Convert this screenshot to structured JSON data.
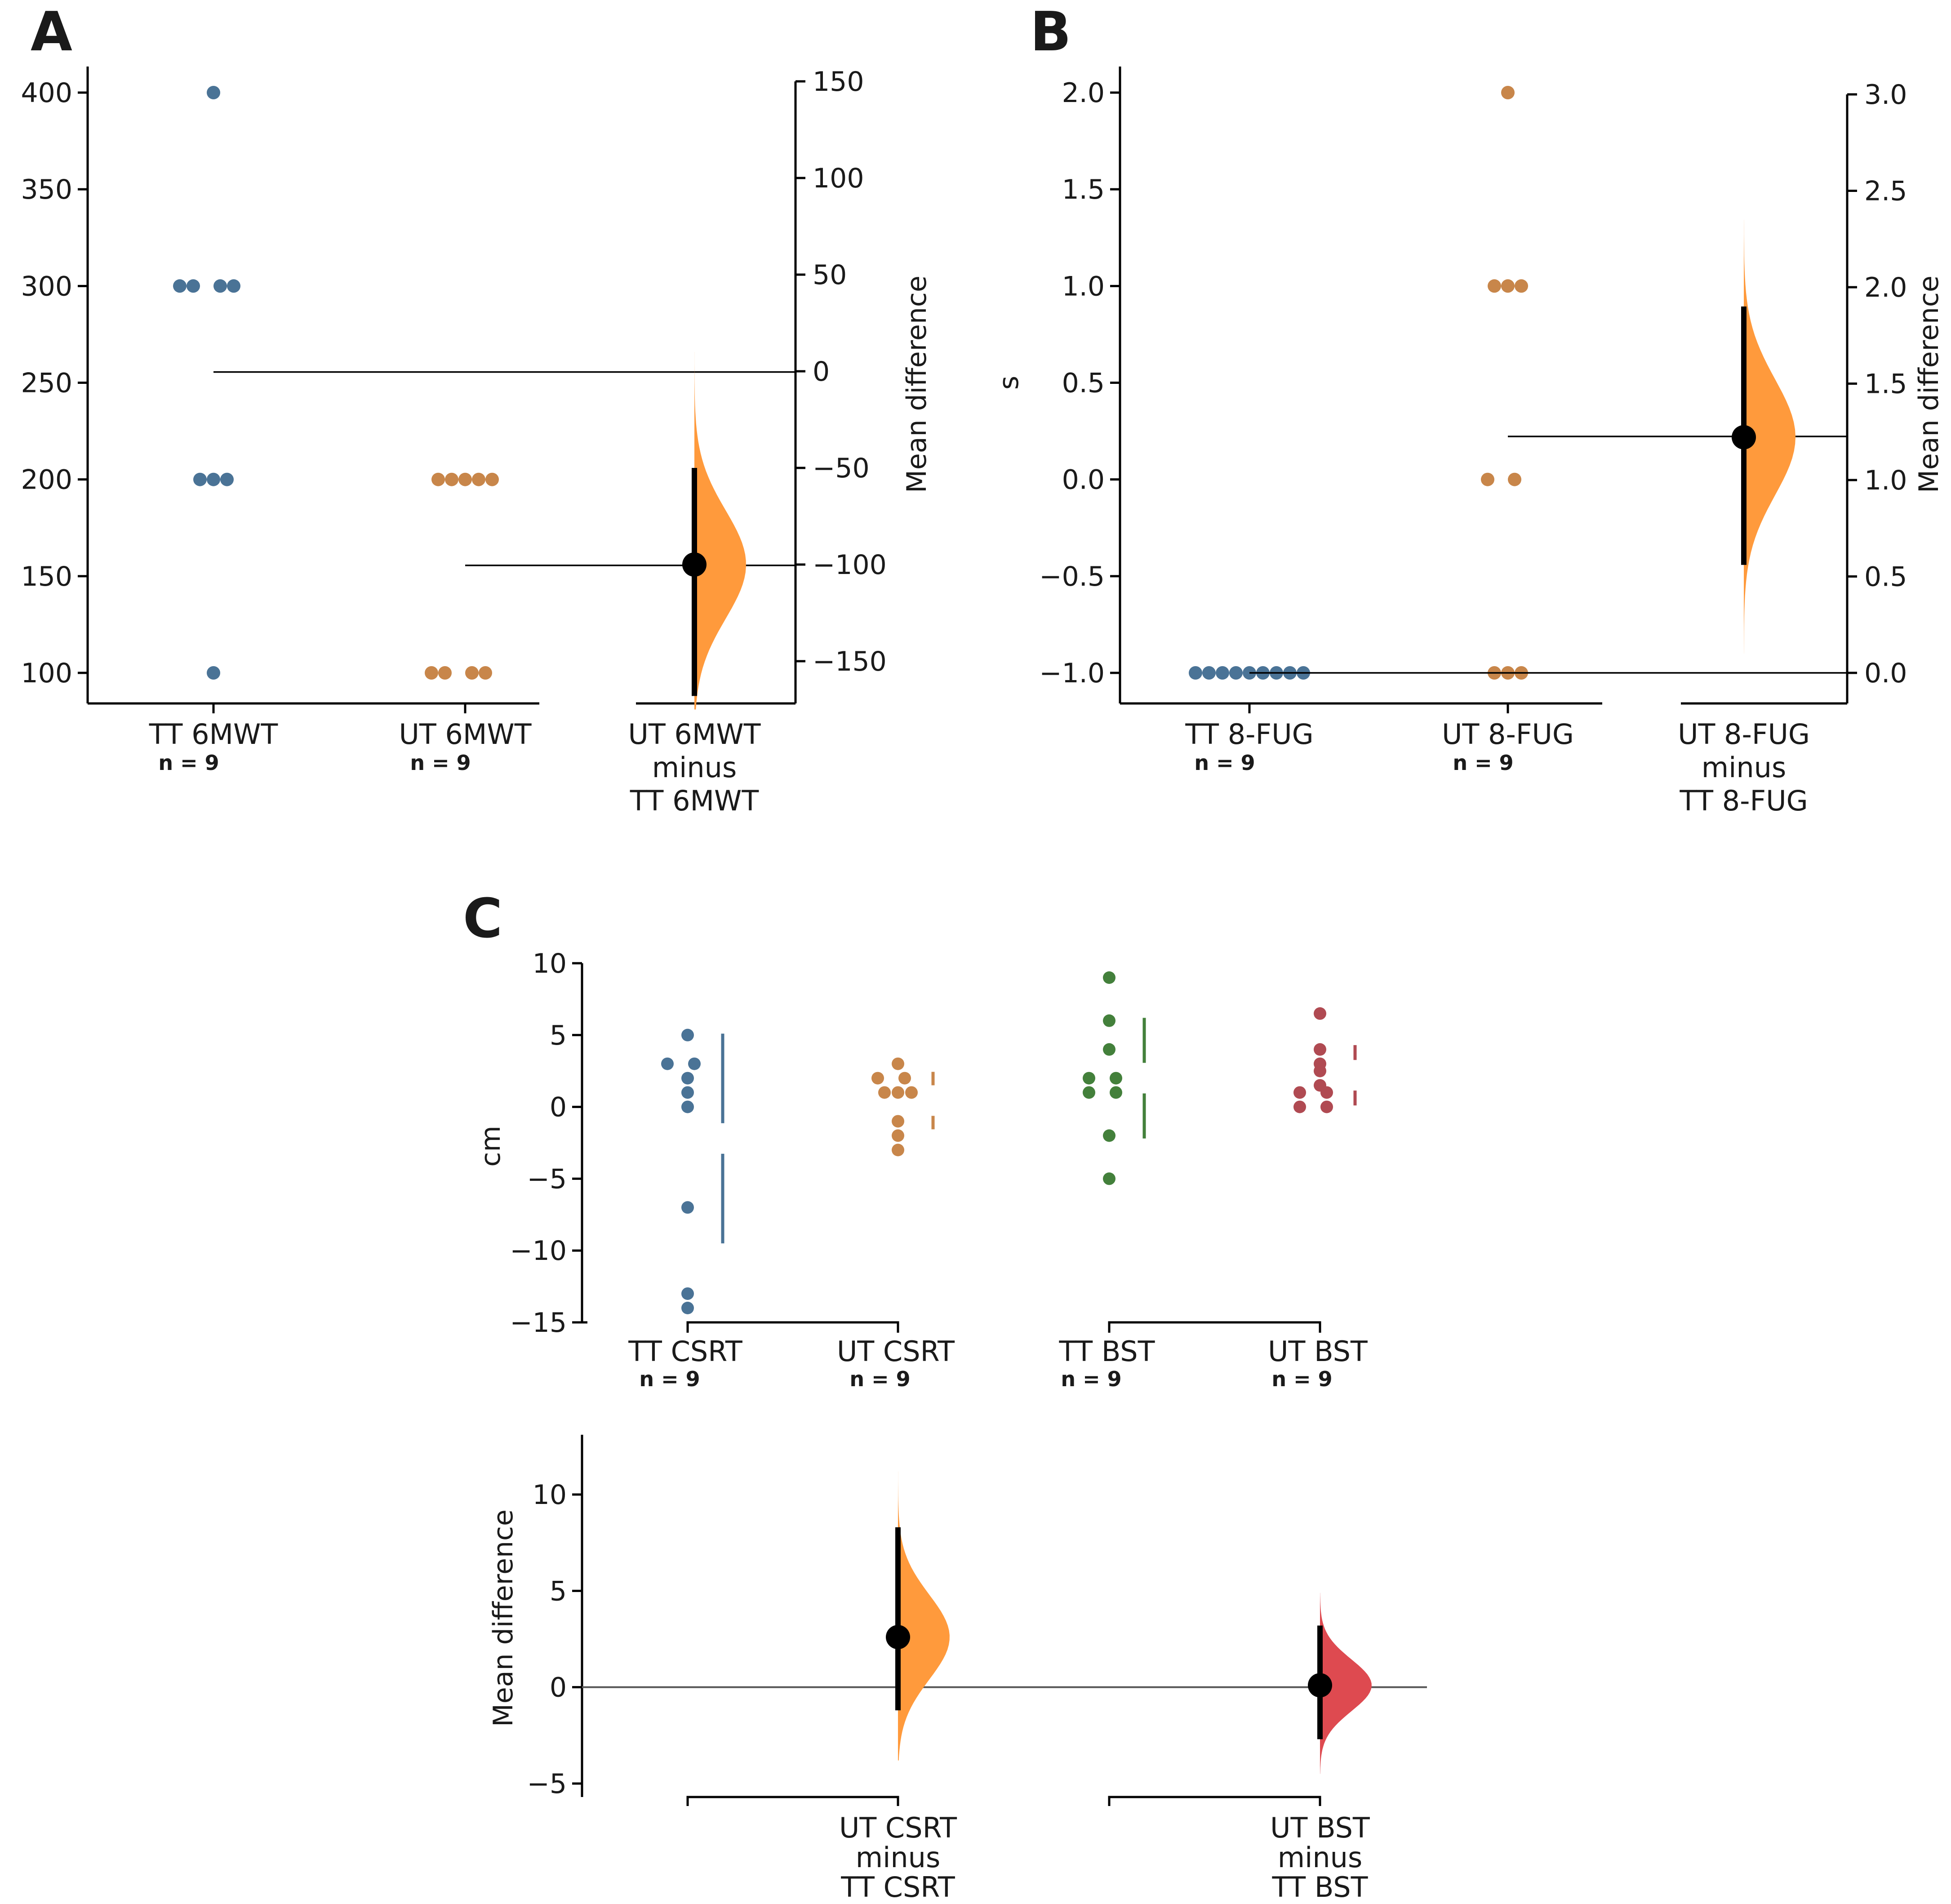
{
  "colors": {
    "tt_blue": "#4a7396",
    "ut_orange": "#c8864a",
    "tt_green": "#43803b",
    "ut_red": "#b04a52",
    "effect_orange": "#ff9a3c",
    "effect_red": "#de4a50",
    "ci_black": "#000000"
  },
  "chart_data": [
    {
      "panel": "A",
      "type": "scatter",
      "subtype": "gardner-altman estimation plot",
      "ylabel": "",
      "right_ylabel": "Mean difference",
      "yticks": [
        100,
        150,
        200,
        250,
        300,
        350,
        400
      ],
      "right_yticks": [
        -150,
        -100,
        -50,
        0,
        50,
        100,
        150
      ],
      "right_ytick_labels": [
        "−150",
        "−100",
        "−50",
        "0",
        "50",
        "100",
        "150"
      ],
      "groups": [
        {
          "label": "TT  6MWT",
          "n_label": "n = 9",
          "color_key": "tt_blue",
          "values": [
            400,
            300,
            300,
            300,
            300,
            200,
            200,
            200,
            100
          ]
        },
        {
          "label": "UT  6MWT",
          "n_label": "n = 9",
          "color_key": "ut_orange",
          "values": [
            200,
            200,
            200,
            200,
            200,
            100,
            100,
            100,
            100
          ]
        }
      ],
      "effect": {
        "label_lines": [
          "UT  6MWT",
          "minus",
          "TT  6MWT"
        ],
        "mean_diff": -100,
        "ci": [
          -168,
          -50
        ],
        "dist_range": [
          -175,
          10
        ],
        "dist_sd": 28,
        "color_key": "effect_orange"
      }
    },
    {
      "panel": "B",
      "type": "scatter",
      "subtype": "gardner-altman estimation plot",
      "ylabel": "s",
      "right_ylabel": "Mean difference",
      "yticks": [
        -1.0,
        -0.5,
        0.0,
        0.5,
        1.0,
        1.5,
        2.0
      ],
      "ytick_labels": [
        "−1.0",
        "−0.5",
        "0.0",
        "0.5",
        "1.0",
        "1.5",
        "2.0"
      ],
      "right_yticks": [
        0.0,
        0.5,
        1.0,
        1.5,
        2.0,
        2.5,
        3.0
      ],
      "right_ytick_labels": [
        "0.0",
        "0.5",
        "1.0",
        "1.5",
        "2.0",
        "2.5",
        "3.0"
      ],
      "groups": [
        {
          "label": "TT  8-FUG",
          "n_label": "n = 9",
          "color_key": "tt_blue",
          "values": [
            -1,
            -1,
            -1,
            -1,
            -1,
            -1,
            -1,
            -1,
            -1
          ]
        },
        {
          "label": "UT  8-FUG",
          "n_label": "n = 9",
          "color_key": "ut_orange",
          "values": [
            2,
            1,
            1,
            1,
            0,
            0,
            -1,
            -1,
            -1
          ]
        }
      ],
      "effect": {
        "label_lines": [
          "UT  8-FUG",
          "minus",
          "TT  8-FUG"
        ],
        "mean_diff": 1.222,
        "ci": [
          0.56,
          1.9
        ],
        "dist_range": [
          0.1,
          2.35
        ],
        "dist_sd": 0.3,
        "color_key": "effect_orange"
      }
    },
    {
      "panel": "C",
      "type": "scatter",
      "subtype": "cumming estimation plot",
      "ylabel": "cm",
      "yticks": [
        -15,
        -10,
        -5,
        0,
        5,
        10
      ],
      "ytick_labels": [
        "−15",
        "−10",
        "−5",
        "0",
        "5",
        "10"
      ],
      "groups": [
        {
          "label": "TT  CSRT",
          "n_label": "n = 9",
          "color_key": "tt_blue",
          "values": [
            5,
            3,
            3,
            2,
            1,
            0,
            -7,
            -13,
            -14
          ],
          "mean": -2.2,
          "sd": 7.3
        },
        {
          "label": "UT  CSRT",
          "n_label": "n = 9",
          "color_key": "ut_orange",
          "values": [
            3,
            2,
            2,
            1,
            1,
            1,
            -1,
            -2,
            -3
          ],
          "mean": 0.44,
          "sd": 2.0
        },
        {
          "label": "TT  BST",
          "n_label": "n = 9",
          "color_key": "tt_green",
          "values": [
            9,
            6,
            4,
            2,
            2,
            1,
            1,
            -2,
            -5
          ],
          "mean": 2.0,
          "sd": 4.2
        },
        {
          "label": "UT  BST",
          "n_label": "n = 9",
          "color_key": "ut_red",
          "values": [
            6.5,
            4,
            3,
            2.5,
            1.5,
            1,
            1,
            0,
            0
          ],
          "mean": 2.2,
          "sd": 2.1
        }
      ],
      "effects": {
        "ylabel": "Mean difference",
        "yticks": [
          -5,
          0,
          5,
          10
        ],
        "ytick_labels": [
          "−5",
          "0",
          "5",
          "10"
        ],
        "items": [
          {
            "label_lines": [
              "UT  CSRT",
              "minus",
              "TT  CSRT"
            ],
            "mean_diff": 2.6,
            "ci": [
              -1.2,
              8.3
            ],
            "dist_range": [
              -3.8,
              11.2
            ],
            "dist_sd": 2.2,
            "color_key": "effect_orange"
          },
          {
            "label_lines": [
              "UT  BST",
              "minus",
              "TT  BST"
            ],
            "mean_diff": 0.1,
            "ci": [
              -2.7,
              3.2
            ],
            "dist_range": [
              -4.5,
              4.9
            ],
            "dist_sd": 1.35,
            "color_key": "effect_red"
          }
        ]
      }
    }
  ]
}
